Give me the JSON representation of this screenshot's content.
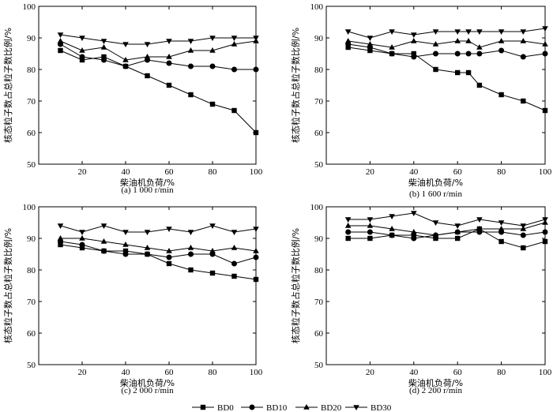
{
  "chart_data": [
    {
      "type": "line",
      "caption": "(a) 1 000 r/min",
      "xlabel": "柴油机负荷/%",
      "ylabel": "核态粒子数占总粒子数比例/%",
      "xlim": [
        0,
        100
      ],
      "ylim": [
        50,
        100
      ],
      "xticks": [
        20,
        40,
        60,
        80,
        100
      ],
      "yticks": [
        50,
        60,
        70,
        80,
        90,
        100
      ],
      "x": [
        10,
        20,
        30,
        40,
        50,
        60,
        70,
        80,
        90,
        100
      ],
      "series": [
        {
          "name": "BD0",
          "marker": "square",
          "values": [
            86,
            83,
            84,
            81,
            78,
            75,
            72,
            69,
            67,
            60
          ]
        },
        {
          "name": "BD10",
          "marker": "circle",
          "values": [
            88,
            84,
            83,
            81,
            83,
            82,
            81,
            81,
            80,
            80
          ]
        },
        {
          "name": "BD20",
          "marker": "triangle",
          "values": [
            89,
            86,
            87,
            83,
            84,
            84,
            86,
            86,
            88,
            89
          ]
        },
        {
          "name": "BD30",
          "marker": "tri-down",
          "values": [
            91,
            90,
            89,
            88,
            88,
            89,
            89,
            90,
            90,
            90
          ]
        }
      ]
    },
    {
      "type": "line",
      "caption": "(b) 1 600 r/min",
      "xlabel": "柴油机负荷/%",
      "ylabel": "核态粒子数占总粒子数比例/%",
      "xlim": [
        0,
        100
      ],
      "ylim": [
        50,
        100
      ],
      "xticks": [
        20,
        40,
        60,
        80,
        100
      ],
      "yticks": [
        50,
        60,
        70,
        80,
        90,
        100
      ],
      "x": [
        10,
        20,
        30,
        40,
        50,
        60,
        65,
        70,
        80,
        90,
        100
      ],
      "series": [
        {
          "name": "BD0",
          "marker": "square",
          "values": [
            87,
            86,
            85,
            85,
            80,
            79,
            79,
            75,
            72,
            70,
            67
          ]
        },
        {
          "name": "BD10",
          "marker": "circle",
          "values": [
            88,
            87,
            85,
            84,
            85,
            85,
            85,
            85,
            86,
            84,
            85
          ]
        },
        {
          "name": "BD20",
          "marker": "triangle",
          "values": [
            89,
            88,
            87,
            89,
            88,
            89,
            89,
            87,
            89,
            89,
            88
          ]
        },
        {
          "name": "BD30",
          "marker": "tri-down",
          "values": [
            92,
            90,
            92,
            91,
            92,
            92,
            92,
            92,
            92,
            92,
            93
          ]
        }
      ]
    },
    {
      "type": "line",
      "caption": "(c) 2 000 r/min",
      "xlabel": "柴油机负荷/%",
      "ylabel": "核态粒子数占总粒子数比例/%",
      "xlim": [
        0,
        100
      ],
      "ylim": [
        50,
        100
      ],
      "xticks": [
        20,
        40,
        60,
        80,
        100
      ],
      "yticks": [
        50,
        60,
        70,
        80,
        90,
        100
      ],
      "x": [
        10,
        20,
        30,
        40,
        50,
        60,
        70,
        80,
        90,
        100
      ],
      "series": [
        {
          "name": "BD0",
          "marker": "square",
          "values": [
            88,
            87,
            86,
            86,
            85,
            82,
            80,
            79,
            78,
            77
          ]
        },
        {
          "name": "BD10",
          "marker": "circle",
          "values": [
            89,
            88,
            86,
            85,
            85,
            84,
            85,
            85,
            82,
            84
          ]
        },
        {
          "name": "BD20",
          "marker": "triangle",
          "values": [
            90,
            90,
            89,
            88,
            87,
            86,
            87,
            86,
            87,
            86
          ]
        },
        {
          "name": "BD30",
          "marker": "tri-down",
          "values": [
            94,
            92,
            94,
            92,
            92,
            93,
            92,
            94,
            92,
            93
          ]
        }
      ]
    },
    {
      "type": "line",
      "caption": "(d) 2 200 r/min",
      "xlabel": "柴油机负荷/%",
      "ylabel": "核态粒子数占总粒子数比例/%",
      "xlim": [
        0,
        100
      ],
      "ylim": [
        50,
        100
      ],
      "xticks": [
        20,
        40,
        60,
        80,
        100
      ],
      "yticks": [
        50,
        60,
        70,
        80,
        90,
        100
      ],
      "x": [
        10,
        20,
        30,
        40,
        50,
        60,
        70,
        80,
        90,
        100
      ],
      "series": [
        {
          "name": "BD0",
          "marker": "square",
          "values": [
            90,
            90,
            91,
            91,
            90,
            90,
            93,
            89,
            87,
            89
          ]
        },
        {
          "name": "BD10",
          "marker": "circle",
          "values": [
            92,
            92,
            91,
            90,
            91,
            92,
            92,
            92,
            91,
            92
          ]
        },
        {
          "name": "BD20",
          "marker": "triangle",
          "values": [
            94,
            94,
            93,
            92,
            91,
            92,
            93,
            93,
            93,
            95
          ]
        },
        {
          "name": "BD30",
          "marker": "tri-down",
          "values": [
            96,
            96,
            97,
            98,
            95,
            94,
            96,
            95,
            94,
            96
          ]
        }
      ]
    }
  ],
  "legend": {
    "placement": "bottom",
    "items": [
      {
        "label": "BD0",
        "marker": "square"
      },
      {
        "label": "BD10",
        "marker": "circle"
      },
      {
        "label": "BD20",
        "marker": "triangle"
      },
      {
        "label": "BD30",
        "marker": "tri-down"
      }
    ]
  }
}
